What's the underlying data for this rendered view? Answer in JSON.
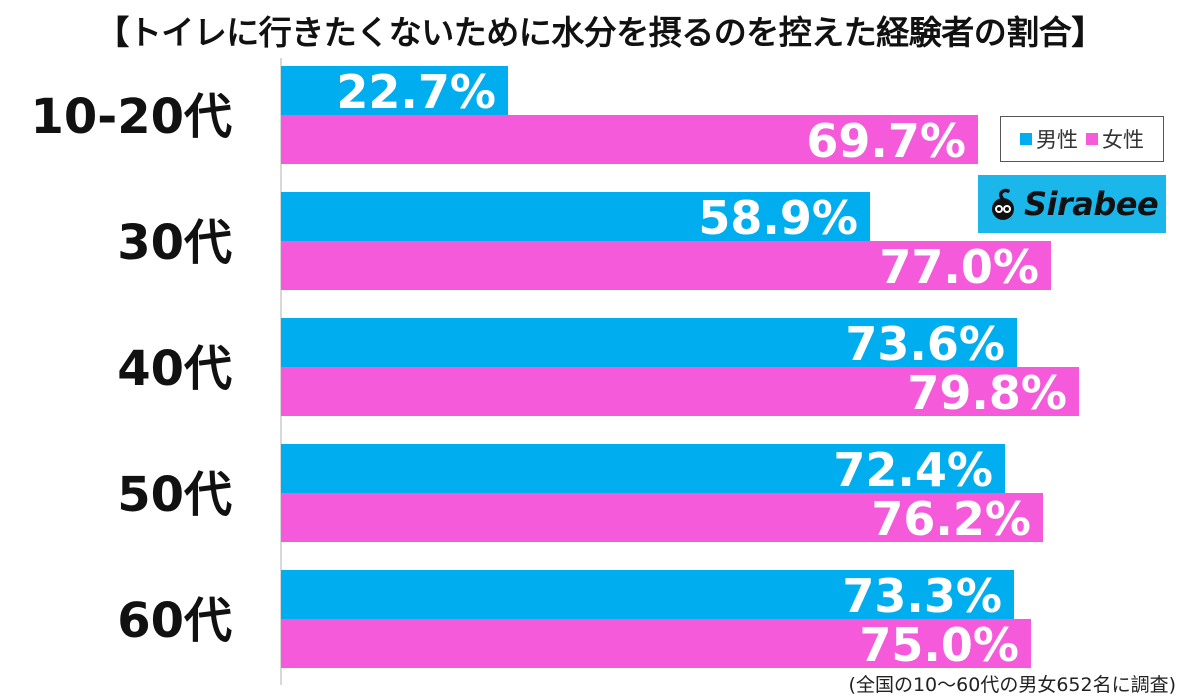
{
  "title": "【トイレに行きたくないために水分を摂るのを控えた経験者の割合】",
  "footnote": "(全国の10〜60代の男女652名に調査)",
  "legend": {
    "male_label": "男性",
    "female_label": "女性"
  },
  "logo": {
    "text": "Sirabee",
    "color": "#1bb6ea"
  },
  "colors": {
    "male": "#00aeef",
    "female": "#f45ad9"
  },
  "chart_data": {
    "type": "bar",
    "orientation": "horizontal",
    "categories": [
      "10-20代",
      "30代",
      "40代",
      "50代",
      "60代"
    ],
    "series": [
      {
        "name": "男性",
        "values": [
          22.7,
          58.9,
          73.6,
          72.4,
          73.3
        ]
      },
      {
        "name": "女性",
        "values": [
          69.7,
          77.0,
          79.8,
          76.2,
          75.0
        ]
      }
    ],
    "value_labels": {
      "男性": [
        "22.7%",
        "58.9%",
        "73.6%",
        "72.4%",
        "73.3%"
      ],
      "女性": [
        "69.7%",
        "77.0%",
        "79.8%",
        "76.2%",
        "75.0%"
      ]
    },
    "xlim": [
      0,
      100
    ],
    "legend_position": "top-right",
    "grid": false
  }
}
